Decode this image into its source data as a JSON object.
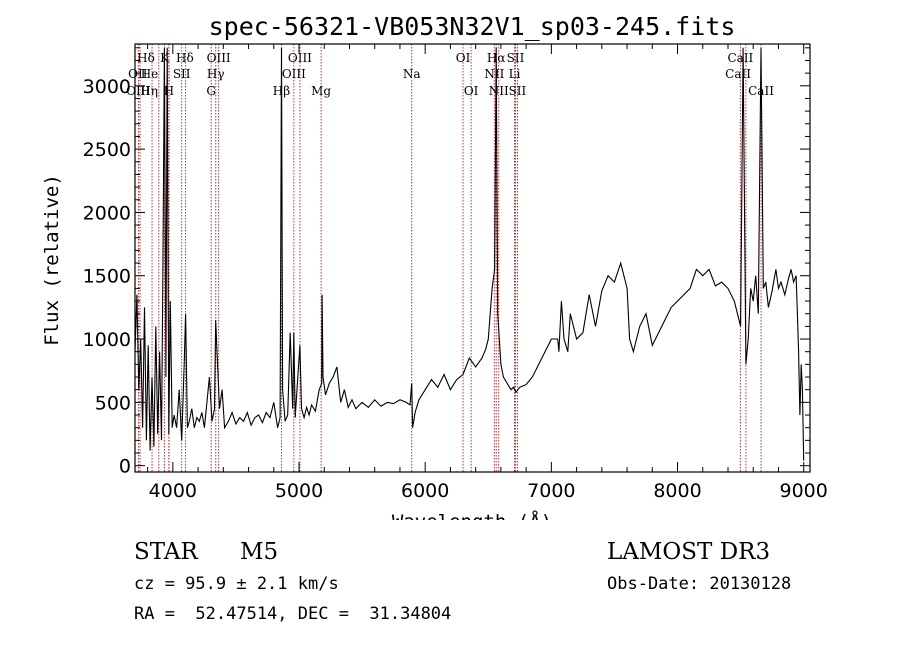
{
  "chart_data": {
    "type": "line",
    "title": "spec-56321-VB053N32V1_sp03-245.fits",
    "xlabel": "Wavelength (Å)",
    "ylabel": "Flux (relative)",
    "xlim": [
      3700,
      9050
    ],
    "ylim": [
      -50,
      3330
    ],
    "x_ticks": [
      4000,
      5000,
      6000,
      7000,
      8000,
      9000
    ],
    "y_ticks": [
      0,
      500,
      1000,
      1500,
      2000,
      2500,
      3000
    ],
    "series": [
      {
        "name": "spectrum",
        "x": [
          3700,
          3715,
          3730,
          3745,
          3760,
          3775,
          3790,
          3805,
          3820,
          3835,
          3850,
          3865,
          3880,
          3895,
          3910,
          3920,
          3933,
          3945,
          3955,
          3968,
          3980,
          3995,
          4010,
          4030,
          4050,
          4070,
          4090,
          4101,
          4115,
          4130,
          4150,
          4170,
          4190,
          4210,
          4230,
          4250,
          4270,
          4290,
          4310,
          4330,
          4340,
          4350,
          4370,
          4390,
          4410,
          4440,
          4470,
          4500,
          4530,
          4560,
          4590,
          4620,
          4650,
          4680,
          4710,
          4740,
          4770,
          4800,
          4830,
          4850,
          4861,
          4870,
          4890,
          4910,
          4930,
          4950,
          4959,
          4970,
          4990,
          5007,
          5020,
          5040,
          5060,
          5080,
          5100,
          5130,
          5160,
          5180,
          5183,
          5190,
          5210,
          5240,
          5270,
          5300,
          5330,
          5360,
          5390,
          5420,
          5450,
          5500,
          5550,
          5600,
          5650,
          5700,
          5750,
          5800,
          5850,
          5880,
          5893,
          5900,
          5920,
          5950,
          6000,
          6050,
          6100,
          6150,
          6200,
          6250,
          6300,
          6350,
          6400,
          6450,
          6480,
          6500,
          6530,
          6550,
          6563,
          6575,
          6600,
          6620,
          6650,
          6680,
          6700,
          6720,
          6750,
          6800,
          6850,
          6900,
          6950,
          7000,
          7050,
          7060,
          7080,
          7100,
          7130,
          7150,
          7200,
          7250,
          7300,
          7350,
          7400,
          7450,
          7500,
          7550,
          7600,
          7620,
          7650,
          7700,
          7750,
          7800,
          7850,
          7900,
          7950,
          8000,
          8050,
          8100,
          8150,
          8200,
          8250,
          8300,
          8350,
          8400,
          8450,
          8500,
          8520,
          8542,
          8560,
          8580,
          8600,
          8620,
          8640,
          8662,
          8680,
          8700,
          8720,
          8750,
          8780,
          8800,
          8820,
          8850,
          8880,
          8900,
          8920,
          8940,
          8950,
          8960,
          8970,
          8980,
          8990,
          9000
        ],
        "values": [
          900,
          1350,
          600,
          1000,
          300,
          1250,
          200,
          950,
          120,
          700,
          150,
          1100,
          250,
          900,
          200,
          1450,
          3300,
          700,
          3300,
          250,
          1300,
          300,
          400,
          300,
          600,
          200,
          800,
          1200,
          300,
          350,
          450,
          300,
          380,
          350,
          420,
          300,
          500,
          700,
          350,
          450,
          1150,
          900,
          450,
          600,
          300,
          350,
          420,
          330,
          380,
          350,
          420,
          320,
          380,
          400,
          340,
          420,
          380,
          500,
          300,
          380,
          3300,
          600,
          350,
          400,
          1050,
          450,
          1050,
          380,
          700,
          950,
          450,
          380,
          460,
          400,
          480,
          430,
          600,
          650,
          1350,
          700,
          560,
          650,
          700,
          780,
          500,
          600,
          460,
          520,
          450,
          500,
          460,
          520,
          470,
          500,
          490,
          520,
          500,
          480,
          650,
          300,
          420,
          520,
          600,
          680,
          620,
          720,
          600,
          680,
          720,
          850,
          780,
          850,
          920,
          1000,
          1400,
          1550,
          3300,
          1200,
          800,
          700,
          650,
          600,
          620,
          580,
          620,
          640,
          700,
          800,
          900,
          1000,
          1000,
          900,
          1300,
          1000,
          900,
          1200,
          1000,
          1050,
          1350,
          1100,
          1380,
          1500,
          1450,
          1600,
          1400,
          1000,
          900,
          1100,
          1200,
          950,
          1050,
          1150,
          1250,
          1300,
          1350,
          1400,
          1550,
          1500,
          1550,
          1420,
          1450,
          1400,
          1300,
          1100,
          3300,
          800,
          1000,
          1400,
          1300,
          1500,
          1200,
          3300,
          1400,
          1450,
          1250,
          1380,
          1550,
          1400,
          1450,
          1350,
          1480,
          1550,
          1450,
          1500,
          1200,
          900,
          400,
          800,
          600,
          40
        ]
      }
    ],
    "lines": [
      {
        "name": "Hδ",
        "x": 3889,
        "row": 1,
        "tx": 3787
      },
      {
        "name": "OII",
        "x": 3727,
        "row": 2,
        "tx": 3722
      },
      {
        "name": "OIII",
        "x": 3740,
        "row": 3,
        "tx": 3725
      },
      {
        "name": "He",
        "x": 3970,
        "row": 2,
        "tx": 3815
      },
      {
        "name": "Hη",
        "x": 3835,
        "row": 3,
        "tx": 3812
      },
      {
        "name": "K",
        "x": 3933,
        "row": 1,
        "tx": 3935
      },
      {
        "name": "H",
        "x": 3968,
        "row": 3,
        "tx": 3968
      },
      {
        "name": "SII",
        "x": 4070,
        "row": 2,
        "tx": 4070
      },
      {
        "name": "Hδ",
        "x": 4101,
        "row": 1,
        "tx": 4095
      },
      {
        "name": "OIII",
        "x": 4363,
        "row": 1,
        "tx": 4363
      },
      {
        "name": "Hγ",
        "x": 4340,
        "row": 2,
        "tx": 4340
      },
      {
        "name": "G",
        "x": 4304,
        "row": 3,
        "tx": 4304
      },
      {
        "name": "Hβ",
        "x": 4861,
        "row": 3,
        "tx": 4861
      },
      {
        "name": "OIII",
        "x": 5007,
        "row": 1,
        "tx": 5007
      },
      {
        "name": "OIII",
        "x": 4959,
        "row": 2,
        "tx": 4959
      },
      {
        "name": "Mg",
        "x": 5175,
        "row": 3,
        "tx": 5175
      },
      {
        "name": "Na",
        "x": 5893,
        "row": 2,
        "tx": 5893
      },
      {
        "name": "OI",
        "x": 6300,
        "row": 1,
        "tx": 6300
      },
      {
        "name": "OI",
        "x": 6364,
        "row": 3,
        "tx": 6364
      },
      {
        "name": "Hα",
        "x": 6563,
        "row": 1,
        "tx": 6563
      },
      {
        "name": "SII",
        "x": 6716,
        "row": 1,
        "tx": 6716
      },
      {
        "name": "NII",
        "x": 6548,
        "row": 2,
        "tx": 6548
      },
      {
        "name": "Li",
        "x": 6708,
        "row": 2,
        "tx": 6708
      },
      {
        "name": "NII",
        "x": 6583,
        "row": 3,
        "tx": 6583
      },
      {
        "name": "SII",
        "x": 6731,
        "row": 3,
        "tx": 6731
      },
      {
        "name": "CaII",
        "x": 8498,
        "row": 1,
        "tx": 8498
      },
      {
        "name": "CaII",
        "x": 8542,
        "row": 2,
        "tx": 8480
      },
      {
        "name": "CaII",
        "x": 8662,
        "row": 3,
        "tx": 8662
      }
    ]
  },
  "info": {
    "class": "STAR",
    "subclass": "M5",
    "survey": "LAMOST DR3",
    "redshift": "cz = 95.9 ± 2.1 km/s",
    "obs_date": "Obs-Date: 20130128",
    "coords": "RA =  52.47514, DEC =  31.34804"
  },
  "colors": {
    "line_marker": "#b22222",
    "spectrum": "#000000"
  }
}
